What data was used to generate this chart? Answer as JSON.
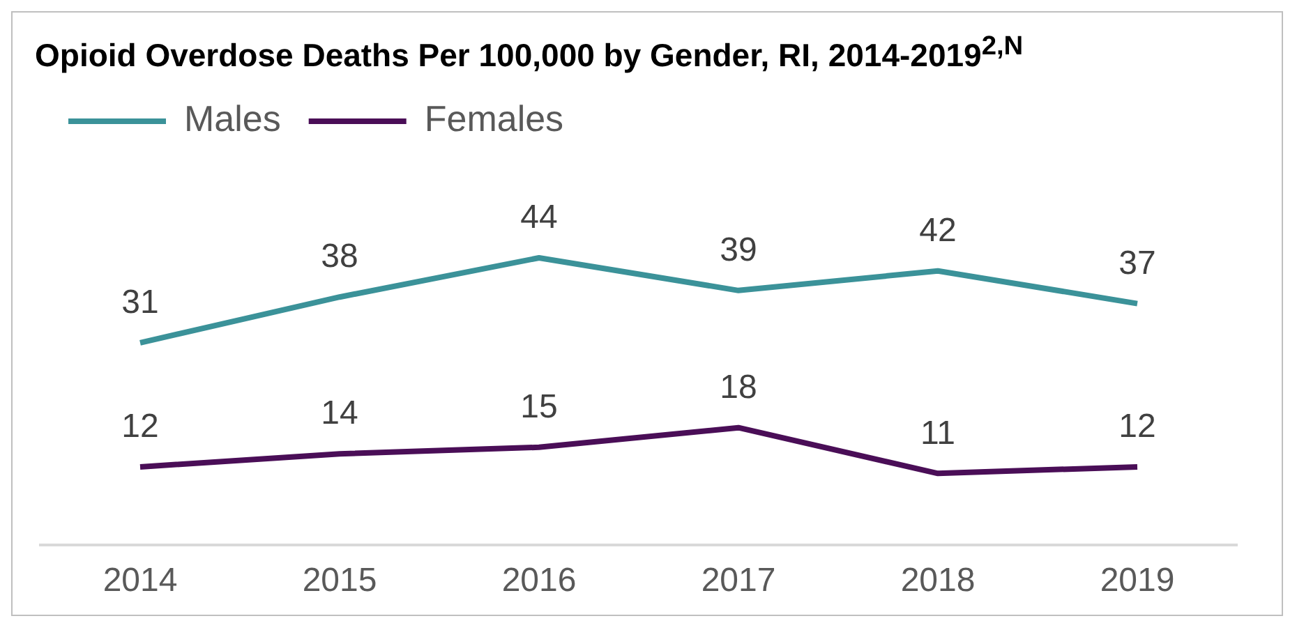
{
  "chart_data": {
    "type": "line",
    "title": "Opioid Overdose Deaths Per 100,000 by Gender, RI, 2014-2019$^{2,N}$",
    "categories": [
      "2014",
      "2015",
      "2016",
      "2017",
      "2018",
      "2019"
    ],
    "series": [
      {
        "name": "Males",
        "color": "#3b9299",
        "values": [
          31,
          38,
          44,
          39,
          42,
          37
        ]
      },
      {
        "name": "Females",
        "color": "#4a0e57",
        "values": [
          12,
          14,
          15,
          18,
          11,
          12
        ]
      }
    ],
    "tick_labels": "x",
    "data_labels": true,
    "legend": "top left",
    "grid": false,
    "marker": "none",
    "line_style": "solid"
  }
}
